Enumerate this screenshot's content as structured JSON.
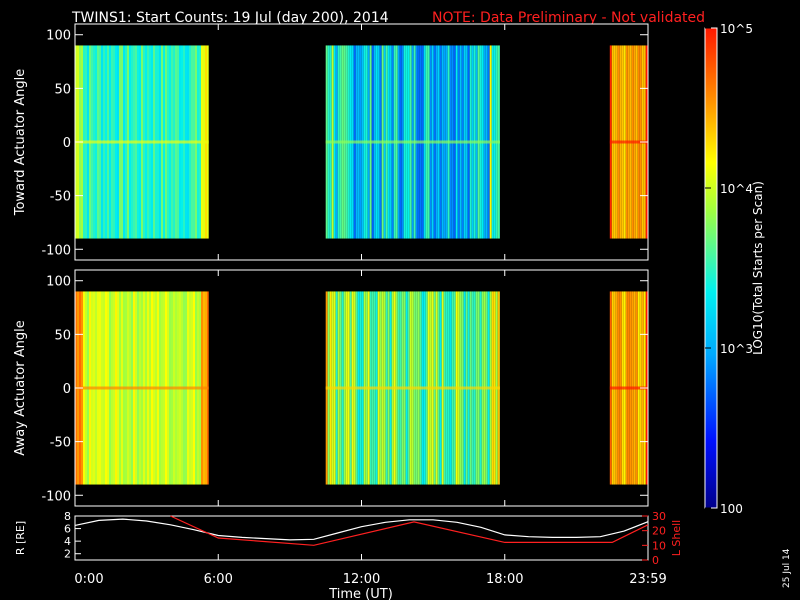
{
  "title": {
    "main": "TWINS1: Start Counts: 19 Jul (day 200), 2014",
    "note": "NOTE: Data Preliminary - Not validated",
    "note_color": "#ff2020"
  },
  "stamp": "25 Jul 14",
  "chart_data": [
    {
      "type": "heatmap",
      "panel": "top",
      "ylabel": "Toward Actuator Angle",
      "ylim": [
        -110,
        110
      ],
      "yticks": [
        -100,
        -50,
        0,
        50,
        100
      ],
      "data_ylim": [
        -90,
        90
      ],
      "xlim": [
        0,
        24
      ],
      "xticks": [],
      "segments": [
        {
          "start_hr": 0.0,
          "end_hr": 5.6,
          "mean_log": 3.5,
          "variability": 0.25
        },
        {
          "start_hr": 10.5,
          "end_hr": 17.8,
          "mean_log": 3.2,
          "variability": 0.5
        },
        {
          "start_hr": 22.4,
          "end_hr": 24.0,
          "mean_log": 4.4,
          "variability": 0.2
        }
      ]
    },
    {
      "type": "heatmap",
      "panel": "middle",
      "ylabel": "Away Actuator Angle",
      "ylim": [
        -110,
        110
      ],
      "yticks": [
        -100,
        -50,
        0,
        50,
        100
      ],
      "data_ylim": [
        -90,
        90
      ],
      "xlim": [
        0,
        24
      ],
      "xticks": [],
      "segments": [
        {
          "start_hr": 0.0,
          "end_hr": 5.6,
          "mean_log": 4.0,
          "variability": 0.2
        },
        {
          "start_hr": 10.5,
          "end_hr": 17.8,
          "mean_log": 3.7,
          "variability": 0.45
        },
        {
          "start_hr": 22.4,
          "end_hr": 24.0,
          "mean_log": 4.4,
          "variability": 0.2
        }
      ]
    },
    {
      "type": "line",
      "panel": "bottom",
      "xlabel": "Time (UT)",
      "xlim": [
        0,
        24
      ],
      "xticks": [
        0,
        6,
        12,
        18,
        24
      ],
      "xtick_labels": [
        "0:00",
        "6:00",
        "12:00",
        "18:00",
        "23:59"
      ],
      "ylabel_left": "R [RE]",
      "ylim_left": [
        1,
        8
      ],
      "yticks_left": [
        2,
        4,
        6,
        8
      ],
      "ylabel_right": "L Shell",
      "ylim_right": [
        0,
        30
      ],
      "yticks_right": [
        0,
        10,
        20,
        30
      ],
      "series": [
        {
          "axis": "left",
          "color": "#ffffff",
          "x": [
            0,
            1,
            2,
            3,
            4,
            5,
            6,
            7,
            8,
            9,
            10,
            11,
            12,
            13,
            14,
            15,
            16,
            17,
            18,
            19,
            20,
            21,
            22,
            23,
            24
          ],
          "y": [
            6.5,
            7.3,
            7.5,
            7.2,
            6.6,
            5.8,
            4.9,
            4.6,
            4.4,
            4.2,
            4.3,
            5.3,
            6.3,
            7.0,
            7.4,
            7.4,
            7.0,
            6.2,
            5.0,
            4.7,
            4.6,
            4.6,
            4.7,
            5.6,
            7.1
          ]
        },
        {
          "axis": "right",
          "color": "#ff2020",
          "x": [
            4,
            6,
            10,
            14.2,
            18,
            22.5,
            24
          ],
          "y": [
            30,
            15,
            10,
            26,
            12,
            12,
            24
          ]
        }
      ]
    }
  ],
  "colorbar": {
    "label": "LOG10(Total Starts per Scan)",
    "range_log": [
      2,
      5
    ],
    "tick_labels": [
      "10^5",
      "10^4",
      "10^3",
      "100"
    ],
    "tick_logs": [
      5,
      4,
      3,
      2
    ]
  }
}
